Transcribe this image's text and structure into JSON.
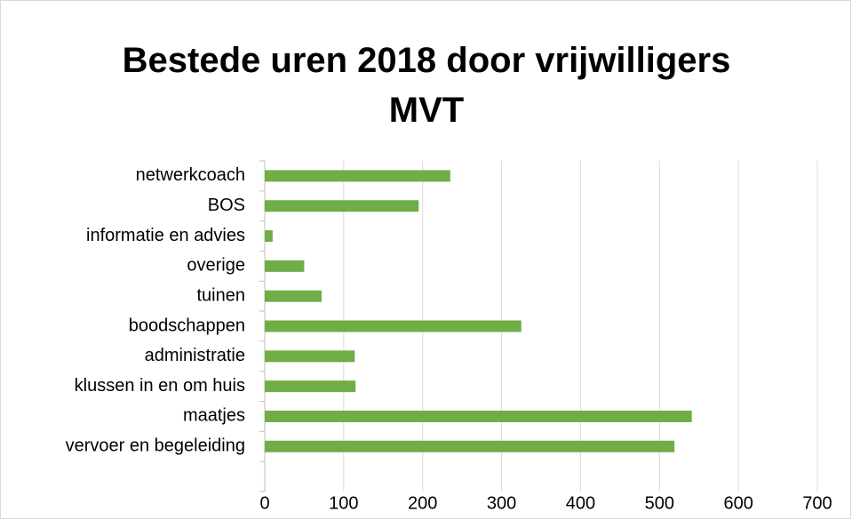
{
  "chart_data": {
    "type": "bar",
    "orientation": "horizontal",
    "title": "Bestede uren 2018 door vrijwilligers MVT",
    "categories": [
      "netwerkcoach",
      "BOS",
      "informatie en advies",
      "overige",
      "tuinen",
      "boodschappen",
      "administratie",
      "klussen in en om huis",
      "maatjes",
      "vervoer en begeleiding",
      null
    ],
    "values": [
      235,
      195,
      10,
      50,
      72,
      325,
      114,
      115,
      541,
      519,
      null
    ],
    "color": "#70ad47",
    "xlim": [
      0,
      700
    ],
    "xticks": [
      0,
      100,
      200,
      300,
      400,
      500,
      600,
      700
    ],
    "grid": true
  }
}
